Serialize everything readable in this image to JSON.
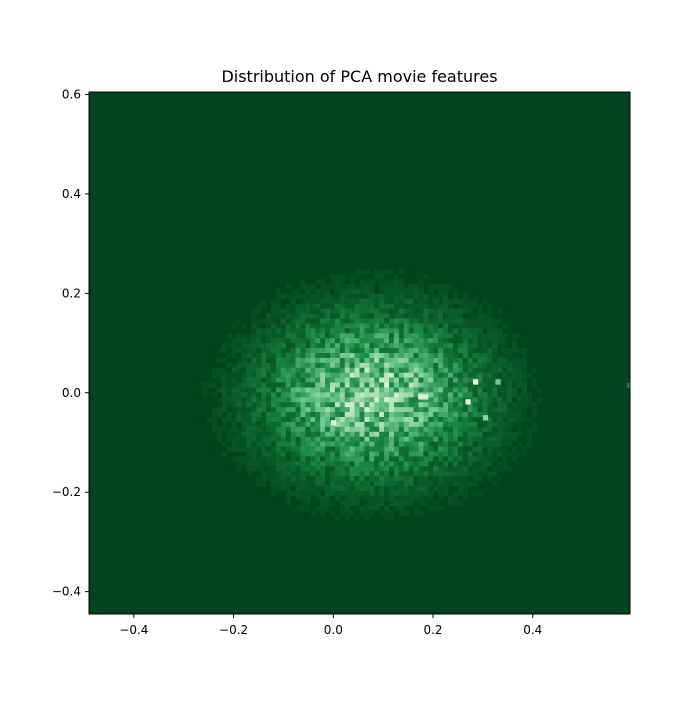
{
  "chart_data": {
    "type": "heatmap",
    "title": "Distribution of PCA movie features",
    "xlabel": "",
    "ylabel": "",
    "xlim": [
      -0.49,
      0.595
    ],
    "ylim": [
      -0.445,
      0.605
    ],
    "x_ticks": [
      -0.4,
      -0.2,
      0.0,
      0.2,
      0.4
    ],
    "y_ticks": [
      -0.4,
      -0.2,
      0.0,
      0.2,
      0.4,
      0.6
    ],
    "x_tick_labels": [
      "−0.4",
      "−0.2",
      "0.0",
      "0.2",
      "0.4"
    ],
    "y_tick_labels": [
      "−0.4",
      "−0.2",
      "0.0",
      "0.2",
      "0.4",
      "0.6"
    ],
    "colormap": [
      "#00441b",
      "#1b8a45",
      "#66c28a",
      "#c7e9c0",
      "#ffffff"
    ],
    "grid": false,
    "legend": "none",
    "distribution": {
      "center": [
        0.08,
        -0.005
      ],
      "spread_x": 0.135,
      "spread_y": 0.1,
      "peak_density": 0.72
    },
    "hot_cells": [
      {
        "x": 0.285,
        "y": 0.022,
        "value": 1.0
      },
      {
        "x": 0.27,
        "y": -0.018,
        "value": 0.9
      },
      {
        "x": 0.175,
        "y": -0.008,
        "value": 0.85
      },
      {
        "x": 0.185,
        "y": -0.008,
        "value": 0.82
      },
      {
        "x": 0.0,
        "y": -0.06,
        "value": 0.85
      },
      {
        "x": 0.305,
        "y": -0.05,
        "value": 0.6
      },
      {
        "x": 0.33,
        "y": 0.022,
        "value": 0.55
      },
      {
        "x": 0.595,
        "y": 0.015,
        "value": 0.3
      }
    ]
  }
}
